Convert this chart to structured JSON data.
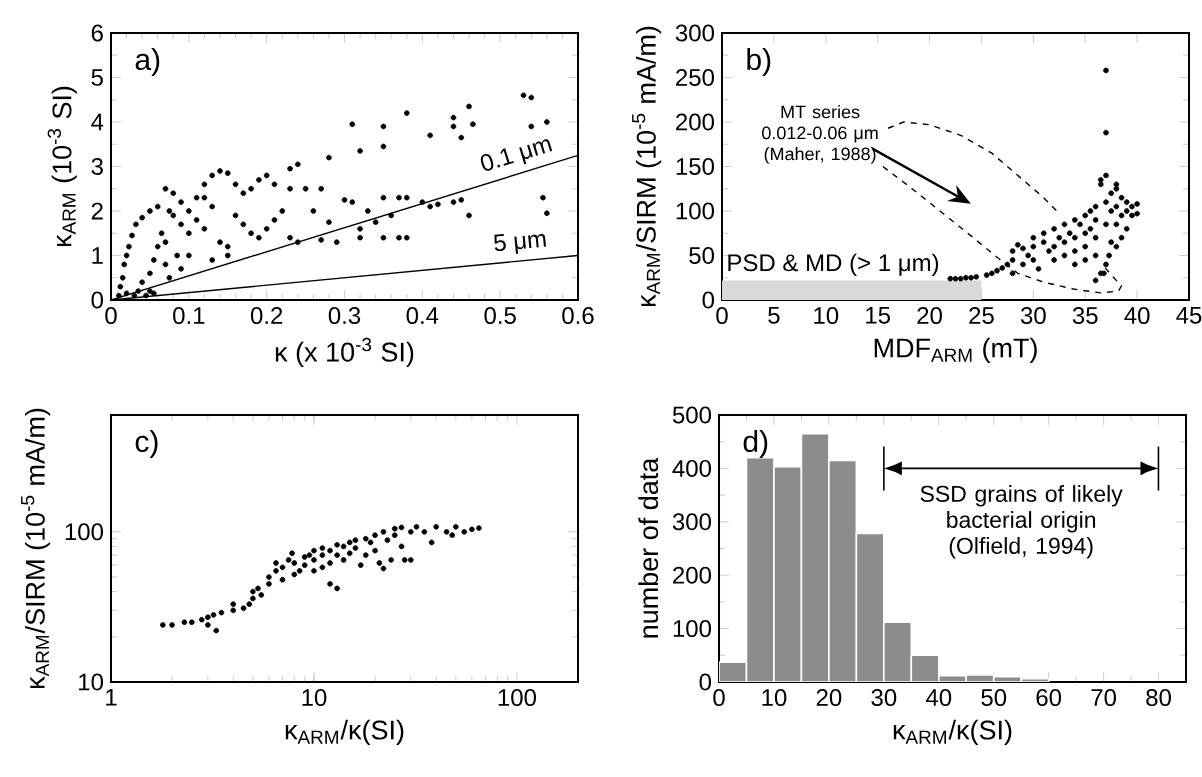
{
  "chart_data": [
    {
      "type": "scatter",
      "title": "a)",
      "xlabel": "κ  (x 10$^{-3}$ SI)",
      "ylabel": "κ$_{ARM}$ (10$^{-3}$ SI)",
      "xlim": [
        0,
        0.6
      ],
      "ylim": [
        0,
        6
      ],
      "xticks": [
        0,
        0.1,
        0.2,
        0.3,
        0.4,
        0.5,
        0.6
      ],
      "yticks": [
        0,
        1,
        2,
        3,
        4,
        5,
        6
      ],
      "series": [
        {
          "color": "#000000",
          "x": [
            0.01,
            0.012,
            0.015,
            0.017,
            0.02,
            0.023,
            0.027,
            0.032,
            0.04,
            0.05,
            0.06,
            0.02,
            0.03,
            0.035,
            0.045,
            0.05,
            0.055,
            0.04,
            0.05,
            0.055,
            0.06,
            0.065,
            0.07,
            0.075,
            0.09,
            0.1,
            0.07,
            0.08,
            0.09,
            0.1,
            0.11,
            0.12,
            0.13,
            0.14,
            0.15,
            0.08,
            0.09,
            0.1,
            0.11,
            0.12,
            0.13,
            0.14,
            0.15,
            0.16,
            0.17,
            0.18,
            0.19,
            0.2,
            0.21,
            0.16,
            0.17,
            0.18,
            0.19,
            0.2,
            0.21,
            0.22,
            0.23,
            0.24,
            0.23,
            0.24,
            0.15,
            0.13,
            0.07,
            0.075,
            0.085,
            0.12,
            0.25,
            0.26,
            0.27,
            0.28,
            0.27,
            0.29,
            0.3,
            0.31,
            0.32,
            0.32,
            0.33,
            0.34,
            0.35,
            0.36,
            0.37,
            0.38,
            0.37,
            0.38,
            0.35,
            0.23,
            0.28,
            0.31,
            0.32,
            0.35,
            0.35,
            0.38,
            0.41,
            0.44,
            0.44,
            0.45,
            0.46,
            0.465,
            0.4,
            0.42,
            0.44,
            0.46,
            0.53,
            0.54,
            0.54,
            0.56,
            0.555,
            0.56,
            0.41,
            0.45
          ],
          "values": [
            0.1,
            0.3,
            0.5,
            0.8,
            1.0,
            1.2,
            1.45,
            1.7,
            1.85,
            2.0,
            2.1,
            0.15,
            0.1,
            0.2,
            0.1,
            0.2,
            0.15,
            0.4,
            0.6,
            0.9,
            1.2,
            1.5,
            0.8,
            0.5,
            0.7,
            1.0,
            2.5,
            2.4,
            2.2,
            2.0,
            1.8,
            2.6,
            2.8,
            2.9,
            2.85,
            1.9,
            1.7,
            1.5,
            2.3,
            1.6,
            2.1,
            1.3,
            1.2,
            2.6,
            2.4,
            2.5,
            2.7,
            2.8,
            2.6,
            1.9,
            1.7,
            1.5,
            1.4,
            1.6,
            1.8,
            2.0,
            2.5,
            3.05,
            1.4,
            1.3,
            1.0,
            0.9,
            1.3,
            2.0,
            1.0,
            2.3,
            2.5,
            2.0,
            2.5,
            1.75,
            1.35,
            1.3,
            2.25,
            2.2,
            1.4,
            1.6,
            2.0,
            1.75,
            1.4,
            1.9,
            1.4,
            1.4,
            2.3,
            2.3,
            2.3,
            2.95,
            3.2,
            3.95,
            3.35,
            3.9,
            3.45,
            4.2,
            3.7,
            4.1,
            3.9,
            3.65,
            4.35,
            3.95,
            2.2,
            2.15,
            2.2,
            1.9,
            4.6,
            4.55,
            3.9,
            4.0,
            2.3,
            1.95,
            2.1,
            2.25
          ]
        },
        {
          "type": "line",
          "name": "0.1 μm",
          "color": "#000000",
          "x": [
            0,
            0.6
          ],
          "values": [
            0,
            3.25
          ]
        },
        {
          "type": "line",
          "name": "5 μm",
          "color": "#000000",
          "x": [
            0,
            0.6
          ],
          "values": [
            0,
            1.0
          ]
        }
      ]
    },
    {
      "type": "scatter",
      "title": "b)",
      "xlabel": "MDF$_{ARM}$ (mT)",
      "ylabel": "κ$_{ARM}$/SIRM (10$^{-5}$ mA/m)",
      "xlim": [
        0,
        45
      ],
      "ylim": [
        0,
        300
      ],
      "xticks": [
        0,
        5,
        10,
        15,
        20,
        25,
        30,
        35,
        40,
        45
      ],
      "yticks": [
        0,
        50,
        100,
        150,
        200,
        250,
        300
      ],
      "annotations": [
        "MT series 0.012-0.06 μm (Maher, 1988)"
      ],
      "series": [
        {
          "type": "area",
          "name": "PSD & MD (> 1 μm)",
          "color": "#d9d9d9",
          "x": [
            0,
            25
          ],
          "values": [
            22,
            22
          ]
        },
        {
          "color": "#000000",
          "x": [
            22,
            22.5,
            23,
            23.5,
            24,
            24.5,
            25.5,
            26,
            26.5,
            27,
            27.5,
            28,
            28,
            28,
            28.5,
            29,
            29,
            29.5,
            30,
            30,
            30,
            30.5,
            31,
            31,
            31.5,
            32,
            32,
            32,
            32.5,
            33,
            33,
            33,
            33.5,
            34,
            34,
            34,
            34,
            34.5,
            35,
            35,
            35,
            35,
            35.5,
            35.5,
            36,
            36,
            36,
            36,
            36,
            36.5,
            36.5,
            36.5,
            37,
            37,
            37,
            37,
            37,
            37.5,
            37.5,
            37.5,
            38,
            38,
            38,
            38,
            38,
            38.5,
            38.5,
            38.5,
            39,
            39,
            39,
            39.5,
            39.5,
            40,
            40,
            37,
            37.3,
            36.8
          ],
          "values": [
            24,
            24,
            24,
            25,
            25,
            26,
            28,
            30,
            33,
            36,
            40,
            30,
            45,
            55,
            62,
            58,
            40,
            50,
            60,
            70,
            45,
            35,
            65,
            75,
            55,
            80,
            60,
            45,
            70,
            85,
            65,
            50,
            75,
            90,
            70,
            55,
            40,
            85,
            95,
            75,
            60,
            45,
            100,
            80,
            105,
            90,
            70,
            50,
            22,
            30,
            130,
            135,
            140,
            110,
            85,
            188,
            258,
            120,
            100,
            65,
            130,
            125,
            105,
            85,
            60,
            115,
            95,
            70,
            110,
            100,
            80,
            105,
            95,
            108,
            97,
            40,
            50,
            30
          ]
        },
        {
          "type": "line",
          "line_style": "dashed",
          "color": "#000000",
          "x": [
            16,
            17.5,
            20,
            23,
            26,
            29,
            31,
            32.5,
            null,
            15.5,
            18,
            21,
            24,
            26.5,
            28.5,
            31,
            34,
            36.5,
            38.2,
            38.5,
            37.5,
            36.8
          ],
          "values": [
            193,
            200,
            197,
            185,
            165,
            135,
            115,
            97,
            null,
            150,
            128,
            100,
            72,
            48,
            30,
            20,
            12,
            8,
            10,
            16,
            28,
            38
          ]
        }
      ]
    },
    {
      "type": "scatter",
      "title": "c)",
      "xlabel": "κ$_{ARM}$/κ(SI)",
      "ylabel": "κ$_{ARM}$/SIRM (10$^{-5}$ mA/m)",
      "log": "xy",
      "xlim": [
        1,
        200
      ],
      "ylim": [
        10,
        600
      ],
      "xticks": [
        1,
        10,
        100
      ],
      "yticks": [
        10,
        100
      ],
      "series": [
        {
          "color": "#000000",
          "x": [
            1.8,
            2,
            2.3,
            2.5,
            2.8,
            3,
            3,
            3.3,
            3.2,
            3.5,
            4,
            4,
            4.5,
            4.8,
            5,
            5,
            5.3,
            5.5,
            6,
            6,
            6.5,
            6.5,
            7,
            7,
            7.5,
            7.8,
            8,
            8,
            8.5,
            9,
            9,
            9.5,
            10,
            10,
            10,
            11,
            11,
            11,
            12,
            12,
            12,
            13,
            13,
            13,
            14,
            14,
            15,
            15,
            16,
            16,
            17,
            18,
            18,
            19,
            20,
            20,
            21,
            22,
            22,
            23,
            24,
            25,
            25,
            27,
            27,
            28,
            30,
            30,
            32,
            35,
            38,
            40,
            45,
            48,
            50,
            55,
            60,
            65
          ],
          "values": [
            24,
            24,
            25,
            25,
            26,
            27,
            24,
            22,
            28,
            29,
            30,
            33,
            31,
            33,
            36,
            40,
            42,
            38,
            45,
            50,
            55,
            62,
            48,
            58,
            65,
            72,
            52,
            62,
            55,
            60,
            68,
            70,
            55,
            65,
            75,
            58,
            70,
            78,
            45,
            62,
            75,
            42,
            70,
            82,
            65,
            80,
            72,
            85,
            78,
            88,
            60,
            70,
            90,
            85,
            75,
            95,
            62,
            57,
            100,
            88,
            65,
            105,
            95,
            80,
            107,
            65,
            65,
            100,
            108,
            100,
            85,
            108,
            100,
            95,
            108,
            100,
            104,
            106
          ]
        }
      ]
    },
    {
      "type": "histogram",
      "title": "d)",
      "xlabel": "κ$_{ARM}$/κ(SI)",
      "ylabel": "number of data",
      "xlim": [
        0,
        85
      ],
      "ylim": [
        0,
        500
      ],
      "xticks": [
        0,
        10,
        20,
        30,
        40,
        50,
        60,
        70,
        80
      ],
      "yticks": [
        0,
        100,
        200,
        300,
        400,
        500
      ],
      "color": "#8c8c8c",
      "bins": [
        0,
        5,
        10,
        15,
        20,
        25,
        30,
        35,
        40,
        45,
        50,
        55,
        60
      ],
      "values": [
        37,
        420,
        403,
        465,
        415,
        278,
        112,
        50,
        12,
        13,
        10,
        6
      ],
      "annotations": [
        "SSD grains of likely bacterial origin (Olfield, 1994)"
      ]
    }
  ]
}
